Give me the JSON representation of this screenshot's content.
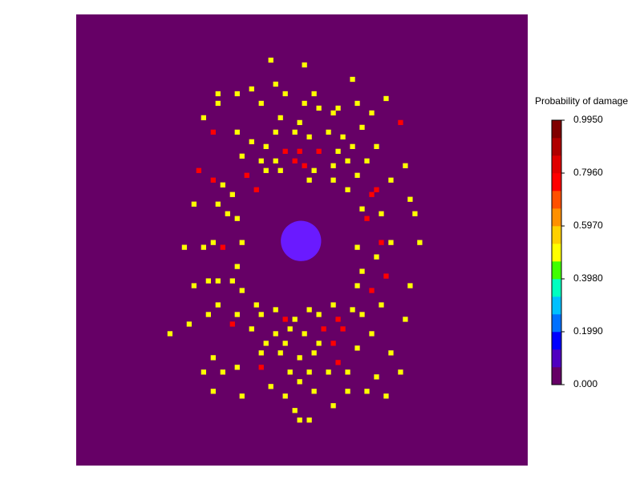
{
  "chart_data": {
    "type": "heatmap",
    "background": "#660066",
    "xlim": [
      0,
      94
    ],
    "ylim": [
      0,
      94
    ],
    "inclusion": {
      "x": 46.8,
      "y": 47.2,
      "r": 4.2,
      "color": "#6a1aff"
    },
    "cells": [
      [
        40,
        9,
        0.5
      ],
      [
        47,
        10,
        0.5
      ],
      [
        57,
        13,
        0.5
      ],
      [
        41,
        14,
        0.5
      ],
      [
        36,
        15,
        0.5
      ],
      [
        29,
        16,
        0.5
      ],
      [
        43,
        16,
        0.5
      ],
      [
        33,
        16,
        0.5
      ],
      [
        38,
        18,
        0.5
      ],
      [
        49,
        16,
        0.5
      ],
      [
        64,
        17,
        0.5
      ],
      [
        29,
        18,
        0.5
      ],
      [
        58,
        18,
        0.5
      ],
      [
        54,
        19,
        0.5
      ],
      [
        47,
        18,
        0.5
      ],
      [
        50,
        19,
        0.5
      ],
      [
        61,
        20,
        0.5
      ],
      [
        26,
        21,
        0.5
      ],
      [
        42,
        21,
        0.5
      ],
      [
        46,
        22,
        0.5
      ],
      [
        53,
        20,
        0.5
      ],
      [
        67,
        22,
        0.75
      ],
      [
        28,
        24,
        0.75
      ],
      [
        33,
        24,
        0.5
      ],
      [
        41,
        24,
        0.5
      ],
      [
        45,
        24,
        0.5
      ],
      [
        48,
        25,
        0.5
      ],
      [
        52,
        24,
        0.5
      ],
      [
        55,
        25,
        0.5
      ],
      [
        59,
        23,
        0.5
      ],
      [
        36,
        26,
        0.5
      ],
      [
        39,
        27,
        0.5
      ],
      [
        43,
        28,
        0.75
      ],
      [
        46,
        28,
        0.75
      ],
      [
        50,
        28,
        0.75
      ],
      [
        54,
        28,
        0.5
      ],
      [
        57,
        27,
        0.5
      ],
      [
        62,
        27,
        0.5
      ],
      [
        34,
        29,
        0.5
      ],
      [
        38,
        30,
        0.5
      ],
      [
        41,
        30,
        0.5
      ],
      [
        45,
        30,
        0.75
      ],
      [
        47,
        31,
        0.75
      ],
      [
        49,
        32,
        0.5
      ],
      [
        53,
        31,
        0.5
      ],
      [
        56,
        30,
        0.5
      ],
      [
        60,
        30,
        0.5
      ],
      [
        68,
        31,
        0.5
      ],
      [
        25,
        32,
        0.75
      ],
      [
        35,
        33,
        0.75
      ],
      [
        39,
        32,
        0.5
      ],
      [
        42,
        32,
        0.5
      ],
      [
        48,
        34,
        0.5
      ],
      [
        53,
        34,
        0.5
      ],
      [
        58,
        33,
        0.5
      ],
      [
        28,
        34,
        0.75
      ],
      [
        30,
        35,
        0.5
      ],
      [
        37,
        36,
        0.75
      ],
      [
        65,
        34,
        0.5
      ],
      [
        56,
        36,
        0.5
      ],
      [
        62,
        36,
        0.75
      ],
      [
        61,
        37,
        0.75
      ],
      [
        32,
        37,
        0.5
      ],
      [
        24,
        39,
        0.5
      ],
      [
        29,
        39,
        0.5
      ],
      [
        31,
        41,
        0.5
      ],
      [
        33,
        42,
        0.5
      ],
      [
        59,
        40,
        0.5
      ],
      [
        63,
        41,
        0.5
      ],
      [
        60,
        42,
        0.75
      ],
      [
        69,
        38,
        0.5
      ],
      [
        70,
        41,
        0.5
      ],
      [
        22,
        48,
        0.5
      ],
      [
        28,
        47,
        0.5
      ],
      [
        30,
        48,
        0.75
      ],
      [
        34,
        47,
        0.5
      ],
      [
        58,
        48,
        0.5
      ],
      [
        63,
        47,
        0.75
      ],
      [
        65,
        47,
        0.5
      ],
      [
        71,
        47,
        0.5
      ],
      [
        26,
        48,
        0.5
      ],
      [
        33,
        52,
        0.5
      ],
      [
        29,
        55,
        0.5
      ],
      [
        27,
        55,
        0.5
      ],
      [
        59,
        53,
        0.5
      ],
      [
        62,
        50,
        0.5
      ],
      [
        64,
        54,
        0.75
      ],
      [
        32,
        55,
        0.5
      ],
      [
        58,
        56,
        0.5
      ],
      [
        69,
        56,
        0.5
      ],
      [
        24,
        56,
        0.5
      ],
      [
        34,
        57,
        0.5
      ],
      [
        61,
        57,
        0.75
      ],
      [
        29,
        60,
        0.5
      ],
      [
        37,
        60,
        0.5
      ],
      [
        41,
        61,
        0.5
      ],
      [
        48,
        61,
        0.5
      ],
      [
        53,
        60,
        0.5
      ],
      [
        57,
        61,
        0.5
      ],
      [
        63,
        60,
        0.5
      ],
      [
        27,
        62,
        0.5
      ],
      [
        33,
        62,
        0.5
      ],
      [
        38,
        62,
        0.5
      ],
      [
        43,
        63,
        0.75
      ],
      [
        45,
        63,
        0.5
      ],
      [
        50,
        62,
        0.5
      ],
      [
        54,
        63,
        0.75
      ],
      [
        59,
        62,
        0.5
      ],
      [
        68,
        63,
        0.5
      ],
      [
        32,
        64,
        0.75
      ],
      [
        23,
        64,
        0.5
      ],
      [
        36,
        65,
        0.5
      ],
      [
        41,
        66,
        0.5
      ],
      [
        44,
        65,
        0.5
      ],
      [
        47,
        66,
        0.5
      ],
      [
        51,
        65,
        0.75
      ],
      [
        55,
        65,
        0.75
      ],
      [
        61,
        66,
        0.5
      ],
      [
        19,
        66,
        0.5
      ],
      [
        39,
        68,
        0.5
      ],
      [
        43,
        68,
        0.5
      ],
      [
        50,
        68,
        0.5
      ],
      [
        53,
        68,
        0.75
      ],
      [
        58,
        69,
        0.5
      ],
      [
        65,
        70,
        0.5
      ],
      [
        28,
        71,
        0.5
      ],
      [
        38,
        70,
        0.5
      ],
      [
        42,
        70,
        0.5
      ],
      [
        46,
        71,
        0.5
      ],
      [
        49,
        70,
        0.5
      ],
      [
        54,
        72,
        0.75
      ],
      [
        26,
        74,
        0.5
      ],
      [
        30,
        74,
        0.5
      ],
      [
        33,
        73,
        0.5
      ],
      [
        38,
        73,
        0.75
      ],
      [
        44,
        74,
        0.5
      ],
      [
        48,
        74,
        0.5
      ],
      [
        52,
        74,
        0.5
      ],
      [
        56,
        74,
        0.5
      ],
      [
        62,
        75,
        0.5
      ],
      [
        67,
        74,
        0.5
      ],
      [
        28,
        78,
        0.5
      ],
      [
        34,
        79,
        0.5
      ],
      [
        40,
        77,
        0.5
      ],
      [
        46,
        76,
        0.5
      ],
      [
        49,
        78,
        0.5
      ],
      [
        56,
        78,
        0.5
      ],
      [
        60,
        78,
        0.5
      ],
      [
        64,
        79,
        0.5
      ],
      [
        43,
        79,
        0.5
      ],
      [
        53,
        81,
        0.5
      ],
      [
        45,
        82,
        0.5
      ],
      [
        46,
        84,
        0.5
      ],
      [
        48,
        84,
        0.5
      ]
    ],
    "colorbar": {
      "title": "Probability of damage",
      "lim": [
        0,
        0.995
      ],
      "colormap": [
        "#660066",
        "#5000c0",
        "#0000ff",
        "#0070ff",
        "#00c0ff",
        "#00ffc0",
        "#40ff00",
        "#ffff00",
        "#ffd000",
        "#ff9000",
        "#ff5000",
        "#ff0000",
        "#e00000",
        "#b00000",
        "#800000"
      ],
      "ticks": [
        {
          "value": 0,
          "label": "0.000"
        },
        {
          "value": 0.199,
          "label": "0.1990"
        },
        {
          "value": 0.398,
          "label": "0.3980"
        },
        {
          "value": 0.597,
          "label": "0.5970"
        },
        {
          "value": 0.796,
          "label": "0.7960"
        },
        {
          "value": 0.995,
          "label": "0.9950"
        }
      ]
    }
  }
}
